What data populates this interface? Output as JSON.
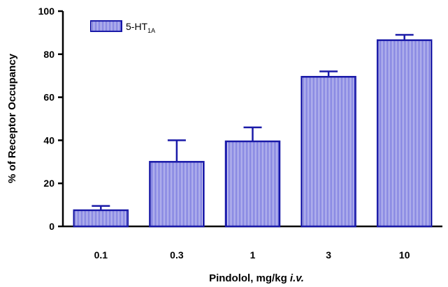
{
  "chart_data": {
    "type": "bar",
    "categories": [
      "0.1",
      "0.3",
      "1",
      "3",
      "10"
    ],
    "values": [
      7.5,
      30,
      39.5,
      69.5,
      86.5
    ],
    "error_bars": [
      2,
      10,
      6.5,
      2.5,
      2.5
    ],
    "xlabel": "Pindolol, mg/kg i.v.",
    "xlabel_main": "Pindolol, mg/kg ",
    "xlabel_italic": "i.v.",
    "ylabel": "% of Receptor Occupancy",
    "ylim": [
      0,
      100
    ],
    "yticks": [
      "0",
      "20",
      "40",
      "60",
      "80",
      "100"
    ],
    "legend": {
      "position": "top-left",
      "series_name": "5-HT1A",
      "label_main": "5-HT",
      "label_sub": "1A"
    },
    "grid": false,
    "colors": {
      "bar_edge": "#1a1aa8",
      "bar_fill_pattern": "#3a3ad0",
      "axis": "#000000"
    }
  }
}
